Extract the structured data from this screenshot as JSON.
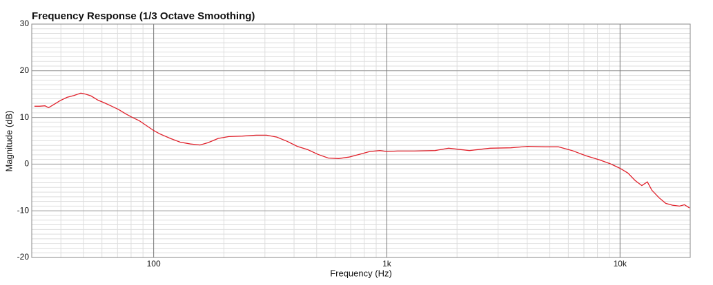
{
  "chart_data": {
    "type": "line",
    "title": "Frequency Response (1/3 Octave Smoothing)",
    "x_label": "Frequency (Hz)",
    "y_label": "Magnitude (dB)",
    "x_scale": "log",
    "grid": true,
    "xlim": [
      30,
      20000
    ],
    "ylim": [
      -20,
      30
    ],
    "xticks": [
      100,
      {
        "value": 1000,
        "label": "1k"
      },
      {
        "value": 10000,
        "label": "10k"
      }
    ],
    "yticks": [
      -20,
      -10,
      0,
      10,
      20,
      30
    ],
    "x": [
      30.8,
      32.4,
      34.2,
      35.4,
      37.1,
      39.7,
      42.5,
      45.5,
      48.7,
      51.1,
      53.9,
      57.7,
      61.7,
      66.1,
      70.7,
      75.7,
      81,
      86.7,
      92.8,
      100,
      106,
      118,
      130,
      144,
      158,
      171,
      189,
      210,
      240,
      275,
      305,
      337,
      373,
      413,
      458,
      506,
      561,
      622,
      688,
      762,
      844,
      934,
      1000,
      1110,
      1310,
      1610,
      1840,
      2260,
      2770,
      3400,
      4020,
      4770,
      5440,
      6230,
      7140,
      8170,
      9060,
      10000,
      10800,
      11600,
      12400,
      13100,
      13700,
      14700,
      15700,
      16800,
      18000,
      18900,
      19870
    ],
    "series": [
      {
        "color": "#e0202a",
        "values": [
          12.4,
          12.4,
          12.5,
          12.1,
          12.7,
          13.6,
          14.3,
          14.7,
          15.2,
          15.0,
          14.6,
          13.7,
          13.1,
          12.4,
          11.7,
          10.8,
          10.0,
          9.3,
          8.3,
          7.2,
          6.5,
          5.5,
          4.7,
          4.3,
          4.1,
          4.6,
          5.5,
          5.9,
          6.0,
          6.2,
          6.2,
          5.8,
          4.9,
          3.8,
          3.1,
          2.1,
          1.3,
          1.2,
          1.5,
          2.1,
          2.7,
          2.9,
          2.7,
          2.8,
          2.8,
          2.9,
          3.4,
          2.9,
          3.4,
          3.5,
          3.8,
          3.7,
          3.7,
          2.9,
          1.8,
          0.9,
          0.1,
          -0.9,
          -1.9,
          -3.5,
          -4.6,
          -3.8,
          -5.6,
          -7.2,
          -8.4,
          -8.8,
          -9.0,
          -8.7,
          -9.4
        ]
      }
    ]
  }
}
